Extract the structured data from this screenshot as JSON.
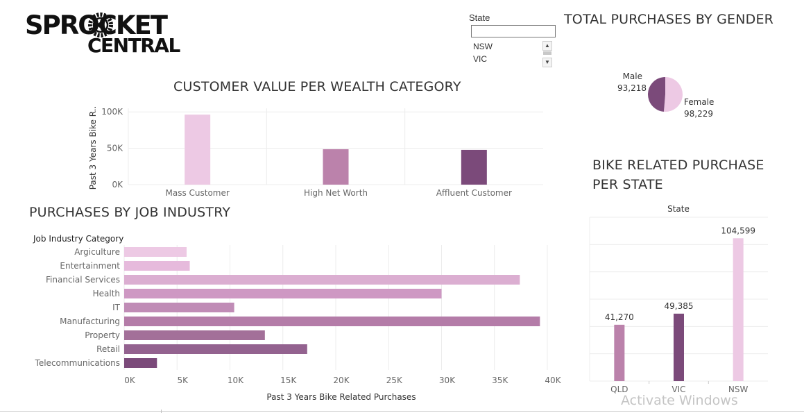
{
  "logo": {
    "line1": "SPROCKET",
    "line2": "CENTRAL"
  },
  "filter": {
    "label": "State",
    "value": "",
    "options": [
      "NSW",
      "VIC"
    ]
  },
  "watermark": "Activate Windows",
  "colors": {
    "lightest": "#edc9e4",
    "light": "#e2b2d8",
    "mid_light": "#ce98c3",
    "mid": "#bb82ab",
    "mid_dark": "#a57099",
    "dark": "#93628f",
    "darkest": "#7b4a7a",
    "grid": "#ececec",
    "text": "#333333",
    "axis_text": "#666666"
  },
  "chart_data": [
    {
      "id": "wealth",
      "type": "bar",
      "title": "CUSTOMER VALUE PER WEALTH CATEGORY",
      "ylabel": "Past 3 Years Bike R..",
      "categories": [
        "Mass Customer",
        "High Net Worth",
        "Affluent Customer"
      ],
      "values": [
        96300,
        48700,
        47800
      ],
      "yticks": [
        {
          "value": 0,
          "label": "0K"
        },
        {
          "value": 50000,
          "label": "50K"
        },
        {
          "value": 100000,
          "label": "100K"
        }
      ],
      "ylim": [
        0,
        105000
      ],
      "colors": [
        "#edc9e4",
        "#bb82ab",
        "#7b4a7a"
      ],
      "grid": true
    },
    {
      "id": "gender",
      "type": "pie",
      "title": "TOTAL PURCHASES BY GENDER",
      "slices": [
        {
          "label": "Male",
          "value": 93218,
          "value_label": "93,218",
          "color": "#7b4a7a"
        },
        {
          "label": "Female",
          "value": 98229,
          "value_label": "98,229",
          "color": "#edc9e4"
        }
      ]
    },
    {
      "id": "industry",
      "type": "bar",
      "orientation": "horizontal",
      "title": "PURCHASES BY JOB INDUSTRY",
      "row_header": "Job Industry Category",
      "xlabel": "Past 3 Years Bike Related Purchases",
      "categories": [
        "Argiculture",
        "Entertainment",
        "Financial Services",
        "Health",
        "IT",
        "Manufacturing",
        "Property",
        "Retail",
        "Telecommunications"
      ],
      "values": [
        5900,
        6200,
        37400,
        30000,
        10400,
        39300,
        13300,
        17300,
        3100
      ],
      "colors": [
        "#edc9e4",
        "#e6badc",
        "#dbaed1",
        "#ce98c3",
        "#c08cb6",
        "#b47ca8",
        "#a37099",
        "#93628f",
        "#7b4a7a"
      ],
      "xticks": [
        {
          "value": 0,
          "label": "0K"
        },
        {
          "value": 5000,
          "label": "5K"
        },
        {
          "value": 10000,
          "label": "10K"
        },
        {
          "value": 15000,
          "label": "15K"
        },
        {
          "value": 20000,
          "label": "20K"
        },
        {
          "value": 25000,
          "label": "25K"
        },
        {
          "value": 30000,
          "label": "30K"
        },
        {
          "value": 35000,
          "label": "35K"
        },
        {
          "value": 40000,
          "label": "40K"
        }
      ],
      "xlim": [
        0,
        40000
      ],
      "grid": true
    },
    {
      "id": "state",
      "type": "bar",
      "title_line1": "BIKE RELATED PURCHASE",
      "title_line2": "PER STATE",
      "column_header": "State",
      "categories": [
        "QLD",
        "VIC",
        "NSW"
      ],
      "values": [
        41270,
        49385,
        104599
      ],
      "value_labels": [
        "41,270",
        "49,385",
        "104,599"
      ],
      "colors": [
        "#bb82ab",
        "#7b4a7a",
        "#edc9e4"
      ],
      "ylim": [
        0,
        120000
      ],
      "grid": true
    }
  ]
}
